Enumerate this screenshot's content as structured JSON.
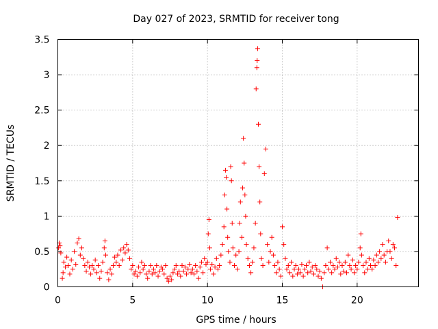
{
  "chart_data": {
    "type": "scatter",
    "title": "Day 027 of 2023, SRMTID for receiver tong",
    "xlabel": "GPS time / hours",
    "ylabel": "SRMTID / TECUs",
    "xlim": [
      0,
      24.1
    ],
    "ylim": [
      0,
      3.5
    ],
    "xticks": [
      0,
      5,
      10,
      15,
      20
    ],
    "xtick_labels": [
      "0",
      "5",
      "10",
      "15",
      "20"
    ],
    "yticks": [
      0,
      0.5,
      1,
      1.5,
      2,
      2.5,
      3,
      3.5
    ],
    "ytick_labels": [
      "0",
      "0.5",
      "1",
      "1.5",
      "2",
      "2.5",
      "3",
      "3.5"
    ],
    "grid": true,
    "marker": "+",
    "color": "#ff0000",
    "series": [
      {
        "name": "SRMTID",
        "points": [
          [
            0.05,
            0.55
          ],
          [
            0.1,
            0.62
          ],
          [
            0.15,
            0.58
          ],
          [
            0.2,
            0.48
          ],
          [
            0.3,
            0.12
          ],
          [
            0.35,
            0.2
          ],
          [
            0.4,
            0.35
          ],
          [
            0.5,
            0.28
          ],
          [
            0.6,
            0.42
          ],
          [
            0.7,
            0.3
          ],
          [
            0.8,
            0.18
          ],
          [
            0.9,
            0.38
          ],
          [
            1.0,
            0.25
          ],
          [
            1.1,
            0.5
          ],
          [
            1.2,
            0.32
          ],
          [
            1.3,
            0.62
          ],
          [
            1.4,
            0.68
          ],
          [
            1.5,
            0.45
          ],
          [
            1.6,
            0.55
          ],
          [
            1.7,
            0.4
          ],
          [
            1.8,
            0.3
          ],
          [
            1.9,
            0.22
          ],
          [
            2.0,
            0.35
          ],
          [
            2.1,
            0.28
          ],
          [
            2.2,
            0.18
          ],
          [
            2.3,
            0.3
          ],
          [
            2.4,
            0.25
          ],
          [
            2.5,
            0.38
          ],
          [
            2.6,
            0.2
          ],
          [
            2.7,
            0.3
          ],
          [
            2.8,
            0.12
          ],
          [
            2.9,
            0.22
          ],
          [
            3.0,
            0.35
          ],
          [
            3.1,
            0.55
          ],
          [
            3.15,
            0.65
          ],
          [
            3.2,
            0.45
          ],
          [
            3.3,
            0.2
          ],
          [
            3.4,
            0.1
          ],
          [
            3.5,
            0.25
          ],
          [
            3.6,
            0.18
          ],
          [
            3.7,
            0.3
          ],
          [
            3.8,
            0.42
          ],
          [
            3.9,
            0.35
          ],
          [
            4.0,
            0.45
          ],
          [
            4.1,
            0.3
          ],
          [
            4.2,
            0.52
          ],
          [
            4.3,
            0.38
          ],
          [
            4.4,
            0.55
          ],
          [
            4.5,
            0.48
          ],
          [
            4.6,
            0.6
          ],
          [
            4.7,
            0.52
          ],
          [
            4.8,
            0.4
          ],
          [
            4.9,
            0.25
          ],
          [
            5.0,
            0.3
          ],
          [
            5.1,
            0.18
          ],
          [
            5.2,
            0.22
          ],
          [
            5.3,
            0.15
          ],
          [
            5.4,
            0.28
          ],
          [
            5.5,
            0.2
          ],
          [
            5.6,
            0.35
          ],
          [
            5.7,
            0.25
          ],
          [
            5.8,
            0.3
          ],
          [
            5.9,
            0.18
          ],
          [
            6.0,
            0.12
          ],
          [
            6.1,
            0.22
          ],
          [
            6.2,
            0.3
          ],
          [
            6.3,
            0.18
          ],
          [
            6.4,
            0.25
          ],
          [
            6.5,
            0.2
          ],
          [
            6.6,
            0.3
          ],
          [
            6.7,
            0.15
          ],
          [
            6.8,
            0.22
          ],
          [
            6.9,
            0.28
          ],
          [
            7.0,
            0.25
          ],
          [
            7.1,
            0.18
          ],
          [
            7.2,
            0.3
          ],
          [
            7.3,
            0.12
          ],
          [
            7.4,
            0.08
          ],
          [
            7.5,
            0.15
          ],
          [
            7.6,
            0.1
          ],
          [
            7.7,
            0.2
          ],
          [
            7.8,
            0.25
          ],
          [
            7.9,
            0.3
          ],
          [
            8.0,
            0.18
          ],
          [
            8.1,
            0.22
          ],
          [
            8.2,
            0.15
          ],
          [
            8.3,
            0.3
          ],
          [
            8.4,
            0.22
          ],
          [
            8.5,
            0.28
          ],
          [
            8.6,
            0.18
          ],
          [
            8.7,
            0.25
          ],
          [
            8.8,
            0.32
          ],
          [
            8.9,
            0.2
          ],
          [
            9.0,
            0.25
          ],
          [
            9.1,
            0.18
          ],
          [
            9.2,
            0.3
          ],
          [
            9.3,
            0.22
          ],
          [
            9.4,
            0.12
          ],
          [
            9.5,
            0.28
          ],
          [
            9.6,
            0.35
          ],
          [
            9.7,
            0.2
          ],
          [
            9.8,
            0.4
          ],
          [
            9.9,
            0.32
          ],
          [
            10.0,
            0.35
          ],
          [
            10.05,
            0.75
          ],
          [
            10.1,
            0.95
          ],
          [
            10.15,
            0.55
          ],
          [
            10.2,
            0.25
          ],
          [
            10.3,
            0.32
          ],
          [
            10.4,
            0.18
          ],
          [
            10.5,
            0.28
          ],
          [
            10.6,
            0.4
          ],
          [
            10.7,
            0.25
          ],
          [
            10.8,
            0.3
          ],
          [
            10.9,
            0.45
          ],
          [
            11.0,
            0.6
          ],
          [
            11.1,
            0.85
          ],
          [
            11.15,
            1.3
          ],
          [
            11.2,
            1.65
          ],
          [
            11.25,
            1.55
          ],
          [
            11.3,
            1.1
          ],
          [
            11.35,
            0.7
          ],
          [
            11.4,
            0.5
          ],
          [
            11.5,
            0.35
          ],
          [
            11.55,
            1.7
          ],
          [
            11.6,
            1.5
          ],
          [
            11.65,
            0.9
          ],
          [
            11.7,
            0.55
          ],
          [
            11.8,
            0.3
          ],
          [
            11.9,
            0.45
          ],
          [
            12.0,
            0.25
          ],
          [
            12.1,
            0.5
          ],
          [
            12.15,
            0.9
          ],
          [
            12.2,
            1.2
          ],
          [
            12.3,
            0.7
          ],
          [
            12.35,
            1.4
          ],
          [
            12.4,
            2.1
          ],
          [
            12.45,
            1.75
          ],
          [
            12.5,
            1.3
          ],
          [
            12.55,
            1.0
          ],
          [
            12.6,
            0.6
          ],
          [
            12.7,
            0.4
          ],
          [
            12.8,
            0.3
          ],
          [
            12.9,
            0.2
          ],
          [
            13.0,
            0.35
          ],
          [
            13.1,
            0.55
          ],
          [
            13.2,
            0.9
          ],
          [
            13.25,
            2.8
          ],
          [
            13.3,
            3.1
          ],
          [
            13.32,
            3.2
          ],
          [
            13.35,
            3.37
          ],
          [
            13.4,
            2.3
          ],
          [
            13.45,
            1.7
          ],
          [
            13.5,
            1.2
          ],
          [
            13.55,
            0.75
          ],
          [
            13.6,
            0.4
          ],
          [
            13.7,
            0.3
          ],
          [
            13.8,
            1.6
          ],
          [
            13.9,
            1.95
          ],
          [
            14.0,
            0.6
          ],
          [
            14.1,
            0.35
          ],
          [
            14.2,
            0.5
          ],
          [
            14.3,
            0.7
          ],
          [
            14.4,
            0.45
          ],
          [
            14.5,
            0.3
          ],
          [
            14.6,
            0.2
          ],
          [
            14.7,
            0.35
          ],
          [
            14.8,
            0.25
          ],
          [
            14.9,
            0.15
          ],
          [
            15.0,
            0.85
          ],
          [
            15.1,
            0.6
          ],
          [
            15.2,
            0.4
          ],
          [
            15.3,
            0.25
          ],
          [
            15.4,
            0.3
          ],
          [
            15.5,
            0.2
          ],
          [
            15.6,
            0.35
          ],
          [
            15.7,
            0.15
          ],
          [
            15.8,
            0.25
          ],
          [
            15.9,
            0.3
          ],
          [
            16.0,
            0.18
          ],
          [
            16.1,
            0.25
          ],
          [
            16.2,
            0.2
          ],
          [
            16.3,
            0.32
          ],
          [
            16.4,
            0.15
          ],
          [
            16.5,
            0.25
          ],
          [
            16.6,
            0.3
          ],
          [
            16.7,
            0.2
          ],
          [
            16.8,
            0.35
          ],
          [
            16.9,
            0.22
          ],
          [
            17.0,
            0.28
          ],
          [
            17.1,
            0.18
          ],
          [
            17.2,
            0.3
          ],
          [
            17.3,
            0.25
          ],
          [
            17.4,
            0.15
          ],
          [
            17.5,
            0.22
          ],
          [
            17.6,
            0.12
          ],
          [
            17.7,
            0.0
          ],
          [
            17.8,
            0.2
          ],
          [
            17.9,
            0.3
          ],
          [
            18.0,
            0.55
          ],
          [
            18.1,
            0.25
          ],
          [
            18.2,
            0.35
          ],
          [
            18.3,
            0.2
          ],
          [
            18.4,
            0.3
          ],
          [
            18.5,
            0.25
          ],
          [
            18.6,
            0.4
          ],
          [
            18.7,
            0.28
          ],
          [
            18.8,
            0.35
          ],
          [
            18.9,
            0.18
          ],
          [
            19.0,
            0.3
          ],
          [
            19.1,
            0.22
          ],
          [
            19.2,
            0.35
          ],
          [
            19.3,
            0.2
          ],
          [
            19.4,
            0.45
          ],
          [
            19.5,
            0.3
          ],
          [
            19.6,
            0.25
          ],
          [
            19.7,
            0.38
          ],
          [
            19.8,
            0.2
          ],
          [
            19.9,
            0.3
          ],
          [
            20.0,
            0.25
          ],
          [
            20.1,
            0.35
          ],
          [
            20.2,
            0.55
          ],
          [
            20.25,
            0.75
          ],
          [
            20.3,
            0.45
          ],
          [
            20.4,
            0.3
          ],
          [
            20.5,
            0.2
          ],
          [
            20.6,
            0.35
          ],
          [
            20.7,
            0.25
          ],
          [
            20.8,
            0.4
          ],
          [
            20.9,
            0.3
          ],
          [
            21.0,
            0.25
          ],
          [
            21.1,
            0.38
          ],
          [
            21.2,
            0.3
          ],
          [
            21.3,
            0.45
          ],
          [
            21.4,
            0.35
          ],
          [
            21.5,
            0.5
          ],
          [
            21.6,
            0.4
          ],
          [
            21.7,
            0.6
          ],
          [
            21.8,
            0.45
          ],
          [
            21.9,
            0.35
          ],
          [
            22.0,
            0.5
          ],
          [
            22.1,
            0.65
          ],
          [
            22.2,
            0.5
          ],
          [
            22.3,
            0.4
          ],
          [
            22.4,
            0.6
          ],
          [
            22.5,
            0.55
          ],
          [
            22.6,
            0.3
          ],
          [
            22.7,
            0.98
          ]
        ]
      }
    ]
  }
}
